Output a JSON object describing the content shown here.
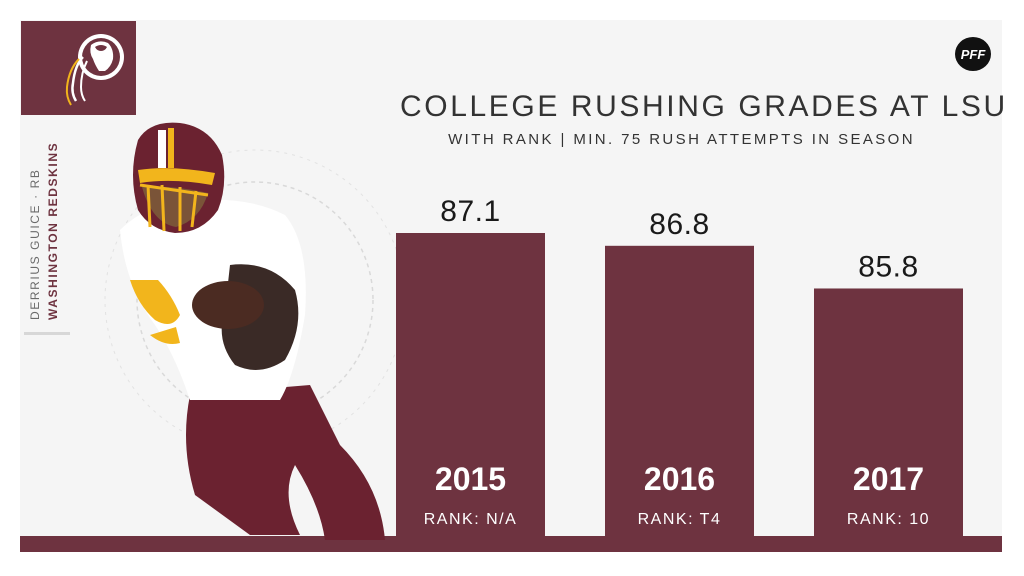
{
  "header": {
    "title": "COLLEGE RUSHING GRADES AT LSU",
    "subtitle": "WITH RANK | MIN. 75 RUSH ATTEMPTS IN SEASON"
  },
  "sidebar": {
    "player": "DERRIUS GUICE · RB",
    "team": "WASHINGTON REDSKINS"
  },
  "brand": {
    "logo_text": "PFF",
    "accent_color": "#6e3340",
    "gold_color": "#f2b51c",
    "background_color": "#f5f5f5"
  },
  "chart_data": {
    "type": "bar",
    "categories": [
      "2015",
      "2016",
      "2017"
    ],
    "values": [
      87.1,
      86.8,
      85.8
    ],
    "ranks": [
      "RANK: N/A",
      "RANK: T4",
      "RANK: 10"
    ],
    "title": "COLLEGE RUSHING GRADES AT LSU",
    "subtitle": "WITH RANK | MIN. 75 RUSH ATTEMPTS IN SEASON",
    "bar_color": "#6e3340",
    "grid": false,
    "ylim": [
      0,
      87.1
    ]
  }
}
